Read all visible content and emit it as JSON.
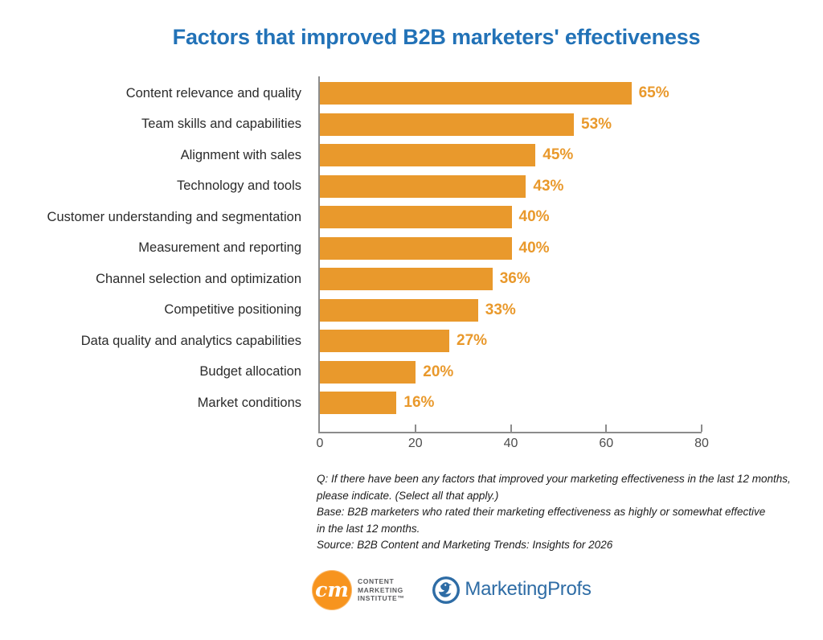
{
  "title": {
    "text": "Factors that improved B2B marketers' effectiveness",
    "color": "#2272B7"
  },
  "chart_data": {
    "type": "bar",
    "orientation": "horizontal",
    "title": "Factors that improved B2B marketers' effectiveness",
    "categories": [
      "Content relevance and quality",
      "Team skills and capabilities",
      "Alignment with sales",
      "Technology and tools",
      "Customer understanding and segmentation",
      "Measurement and reporting",
      "Channel selection and optimization",
      "Competitive positioning",
      "Data quality and analytics capabilities",
      "Budget allocation",
      "Market conditions"
    ],
    "values": [
      65,
      53,
      45,
      43,
      40,
      40,
      36,
      33,
      27,
      20,
      16
    ],
    "display_labels": [
      "65%",
      "53%",
      "45%",
      "43%",
      "40%",
      "40%",
      "36%",
      "33%",
      "27%",
      "20%",
      "16%"
    ],
    "xlabel": "",
    "ylabel": "",
    "xlim": [
      0,
      80
    ],
    "x_ticks": [
      0,
      20,
      40,
      60,
      80
    ],
    "grid": false,
    "legend": false,
    "bar_color": "#E9992C",
    "value_label_color": "#E9992C"
  },
  "notes": {
    "lines": [
      "Q: If there have been any factors that improved your marketing effectiveness in the last 12 months,",
      "please indicate. (Select all that apply.)",
      "Base: B2B marketers who rated their marketing effectiveness as highly or somewhat effective",
      "in the last 12 months.",
      "Source: B2B Content and Marketing Trends: Insights for 2026"
    ]
  },
  "footer": {
    "cmi": {
      "monogram": "cm",
      "line1": "CONTENT",
      "line2": "MARKETING",
      "line3": "INSTITUTE™",
      "circle_color": "#F7941E"
    },
    "marketingprofs": {
      "wordmark": "MarketingProfs",
      "color": "#2E6CA5"
    }
  }
}
